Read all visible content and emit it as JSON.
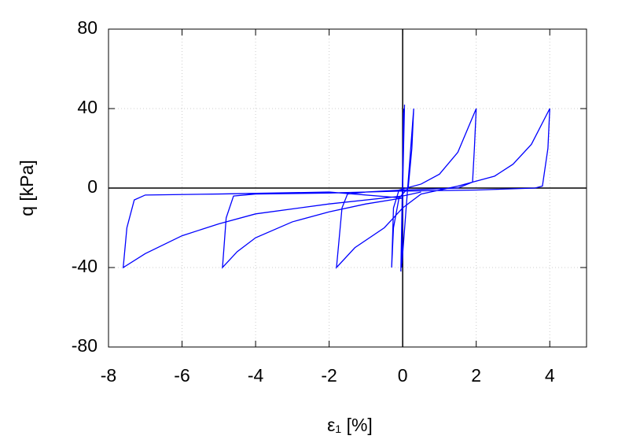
{
  "chart_data": {
    "type": "line",
    "xlabel": "ε₁ [%]",
    "ylabel": "q [kPa]",
    "xlim": [
      -8,
      5
    ],
    "ylim": [
      -80,
      80
    ],
    "xticks": [
      -8,
      -6,
      -4,
      -2,
      0,
      2,
      4
    ],
    "yticks": [
      -80,
      -40,
      0,
      40,
      80
    ],
    "grid": true,
    "zero_lines": true,
    "series": [
      {
        "color": "#0000ff",
        "x": [
          0,
          0.05,
          -0.05,
          0.03,
          -0.03,
          0.02,
          -0.02,
          0.3,
          0.25,
          0.15,
          -0.1,
          -0.25,
          -0.3,
          -0.25,
          -0.1,
          0.5,
          1,
          1.5,
          2,
          1.95,
          1.9,
          1.5,
          0,
          -1,
          -1.5,
          -1.65,
          -1.8,
          -1.3,
          -0.5,
          0,
          0.5,
          1.5,
          2.5,
          3,
          3.5,
          4,
          3.95,
          3.8,
          3.6,
          2,
          0,
          -2,
          -4,
          -4.6,
          -4.8,
          -4.9,
          -4.5,
          -4,
          -3,
          -2,
          -1,
          0,
          -2,
          -5,
          -7,
          -7.3,
          -7.5,
          -7.6,
          -7,
          -6,
          -5,
          -4,
          -2,
          0,
          0.5
        ],
        "values": [
          0,
          42,
          -42,
          40,
          -40,
          38,
          -38,
          40,
          20,
          0,
          -5,
          -20,
          -40,
          -10,
          -1,
          2,
          7,
          18,
          40,
          20,
          3,
          0,
          -1,
          -2,
          -3,
          -10,
          -40,
          -30,
          -20,
          -10,
          -3,
          1,
          6,
          12,
          22,
          40,
          20,
          1,
          0,
          -1,
          -1.5,
          -2.5,
          -3,
          -4,
          -15,
          -40,
          -32,
          -25,
          -17,
          -12,
          -8,
          -5,
          -2,
          -3,
          -3.5,
          -6,
          -20,
          -40,
          -33,
          -24,
          -18,
          -13,
          -8,
          -4,
          -2
        ]
      }
    ]
  }
}
